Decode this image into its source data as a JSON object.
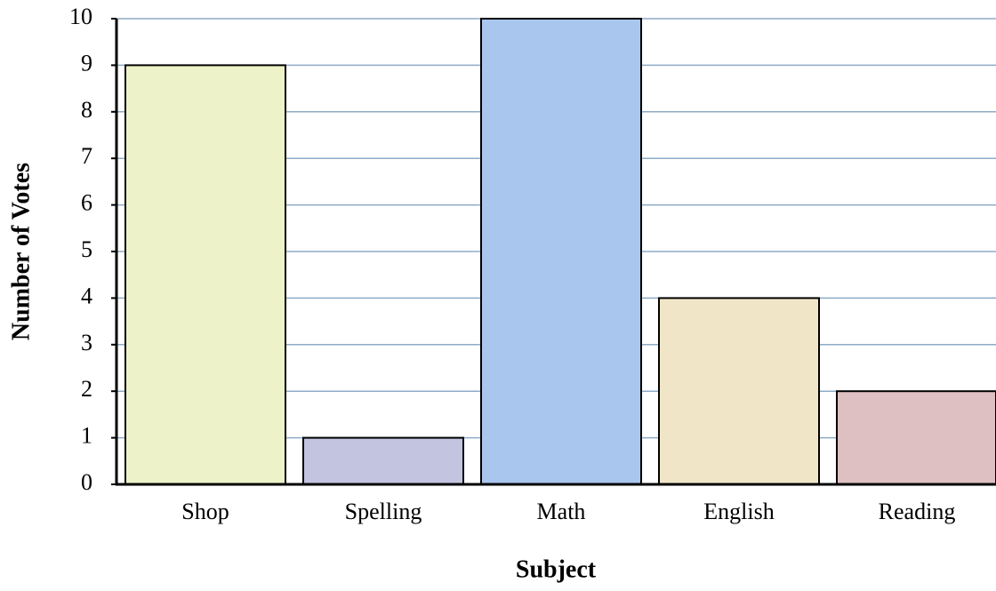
{
  "chart_data": {
    "type": "bar",
    "x_label": "Subject",
    "y_label": "Number of Votes",
    "categories": [
      "Shop",
      "Spelling",
      "Math",
      "English",
      "Reading"
    ],
    "values": [
      9,
      1,
      10,
      4,
      2
    ],
    "colors": [
      "#eef2c8",
      "#c2c4e0",
      "#a9c6ef",
      "#f1e5c8",
      "#dec0c2"
    ],
    "ylim": [
      0,
      10
    ],
    "yticks": [
      0,
      1,
      2,
      3,
      4,
      5,
      6,
      7,
      8,
      9,
      10
    ],
    "grid": true
  }
}
